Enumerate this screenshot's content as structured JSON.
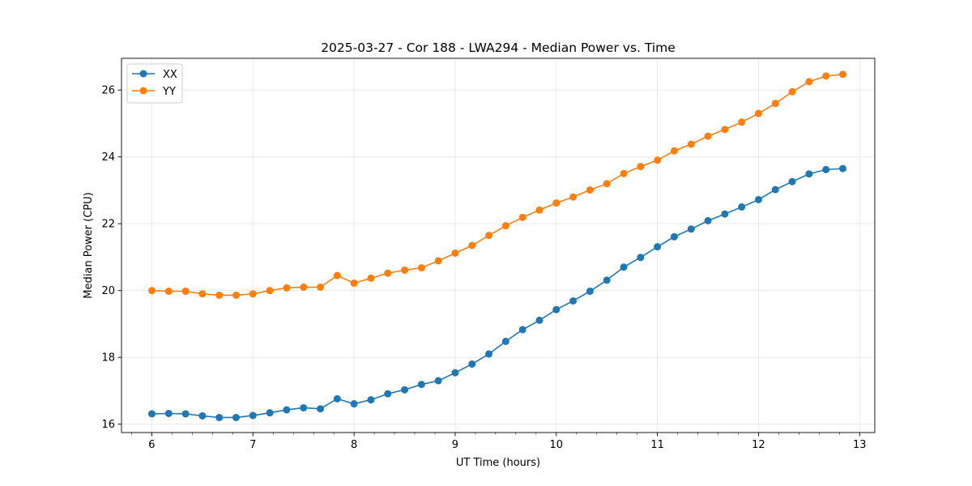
{
  "chart_data": {
    "type": "line",
    "title": "2025-03-27 - Cor 188 - LWA294 - Median Power vs. Time",
    "xlabel": "UT Time (hours)",
    "ylabel": "Median Power (CPU)",
    "xlim": [
      5.7,
      13.15
    ],
    "ylim": [
      15.75,
      26.95
    ],
    "xticks": [
      6,
      7,
      8,
      9,
      10,
      11,
      12,
      13
    ],
    "xminor_step": 0.2,
    "yticks": [
      16,
      18,
      20,
      22,
      24,
      26
    ],
    "grid": true,
    "legend_position": "top-left",
    "x": [
      6.0,
      6.1667,
      6.3333,
      6.5,
      6.6667,
      6.8333,
      7.0,
      7.1667,
      7.3333,
      7.5,
      7.6667,
      7.8333,
      8.0,
      8.1667,
      8.3333,
      8.5,
      8.6667,
      8.8333,
      9.0,
      9.1667,
      9.3333,
      9.5,
      9.6667,
      9.8333,
      10.0,
      10.1667,
      10.3333,
      10.5,
      10.6667,
      10.8333,
      11.0,
      11.1667,
      11.3333,
      11.5,
      11.6667,
      11.8333,
      12.0,
      12.1667,
      12.3333,
      12.5,
      12.6667,
      12.8333
    ],
    "series": [
      {
        "name": "XX",
        "color": "#1f77b4",
        "values": [
          16.31,
          16.32,
          16.31,
          16.25,
          16.2,
          16.2,
          16.26,
          16.34,
          16.43,
          16.49,
          16.46,
          16.76,
          16.61,
          16.73,
          16.91,
          17.03,
          17.19,
          17.3,
          17.54,
          17.8,
          18.1,
          18.48,
          18.83,
          19.11,
          19.43,
          19.69,
          19.98,
          20.31,
          20.7,
          20.99,
          21.31,
          21.61,
          21.84,
          22.09,
          22.29,
          22.5,
          22.72,
          23.02,
          23.26,
          23.49,
          23.62,
          23.65
        ]
      },
      {
        "name": "YY",
        "color": "#ff7f0e",
        "values": [
          20.0,
          19.98,
          19.98,
          19.9,
          19.86,
          19.86,
          19.9,
          20.0,
          20.08,
          20.1,
          20.1,
          20.45,
          20.22,
          20.37,
          20.52,
          20.61,
          20.68,
          20.89,
          21.12,
          21.35,
          21.65,
          21.94,
          22.19,
          22.41,
          22.62,
          22.8,
          23.01,
          23.2,
          23.5,
          23.71,
          23.9,
          24.18,
          24.38,
          24.62,
          24.82,
          25.04,
          25.3,
          25.6,
          25.95,
          26.25,
          26.42,
          26.47
        ]
      }
    ]
  }
}
